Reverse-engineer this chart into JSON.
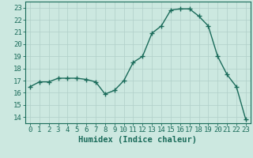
{
  "x": [
    0,
    1,
    2,
    3,
    4,
    5,
    6,
    7,
    8,
    9,
    10,
    11,
    12,
    13,
    14,
    15,
    16,
    17,
    18,
    19,
    20,
    21,
    22,
    23
  ],
  "y": [
    16.5,
    16.9,
    16.9,
    17.2,
    17.2,
    17.2,
    17.1,
    16.9,
    15.9,
    16.2,
    17.0,
    18.5,
    19.0,
    20.9,
    21.5,
    22.8,
    22.9,
    22.9,
    22.3,
    21.5,
    19.0,
    17.5,
    16.5,
    13.8
  ],
  "line_color": "#1a6b5a",
  "marker": "+",
  "marker_size": 4,
  "bg_color": "#cce8e0",
  "grid_color": "#b0cfc8",
  "xlabel": "Humidex (Indice chaleur)",
  "xlim": [
    -0.5,
    23.5
  ],
  "ylim": [
    13.5,
    23.5
  ],
  "yticks": [
    14,
    15,
    16,
    17,
    18,
    19,
    20,
    21,
    22,
    23
  ],
  "xticks": [
    0,
    1,
    2,
    3,
    4,
    5,
    6,
    7,
    8,
    9,
    10,
    11,
    12,
    13,
    14,
    15,
    16,
    17,
    18,
    19,
    20,
    21,
    22,
    23
  ],
  "xtick_labels": [
    "0",
    "1",
    "2",
    "3",
    "4",
    "5",
    "6",
    "7",
    "8",
    "9",
    "10",
    "11",
    "12",
    "13",
    "14",
    "15",
    "16",
    "17",
    "18",
    "19",
    "20",
    "21",
    "22",
    "23"
  ],
  "tick_color": "#1a6b5a",
  "axis_color": "#1a6b5a",
  "font_size": 6.5,
  "xlabel_fontsize": 7.5,
  "linewidth": 1.0
}
